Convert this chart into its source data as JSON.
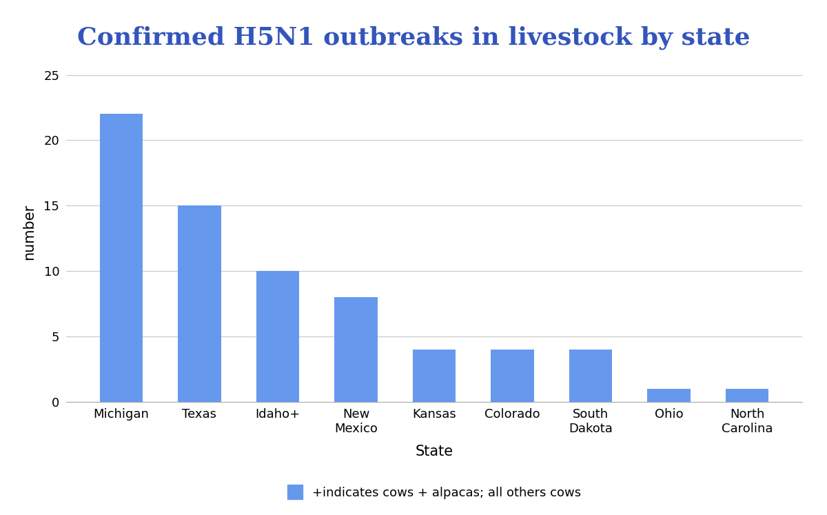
{
  "title": "Confirmed H5N1 outbreaks in livestock by state",
  "title_color": "#3355bb",
  "title_fontsize": 26,
  "title_fontweight": "bold",
  "categories": [
    "Michigan",
    "Texas",
    "Idaho+",
    "New\nMexico",
    "Kansas",
    "Colorado",
    "South\nDakota",
    "Ohio",
    "North\nCarolina"
  ],
  "values": [
    22,
    15,
    10,
    8,
    4,
    4,
    4,
    1,
    1
  ],
  "bar_color": "#6699ee",
  "xlabel": "State",
  "ylabel": "number",
  "xlabel_fontsize": 15,
  "ylabel_fontsize": 15,
  "ylim": [
    0,
    26
  ],
  "yticks": [
    0,
    5,
    10,
    15,
    20,
    25
  ],
  "grid_color": "#cccccc",
  "background_color": "#ffffff",
  "legend_label": "+indicates cows + alpacas; all others cows",
  "legend_fontsize": 13,
  "tick_fontsize": 13,
  "bar_width": 0.55
}
